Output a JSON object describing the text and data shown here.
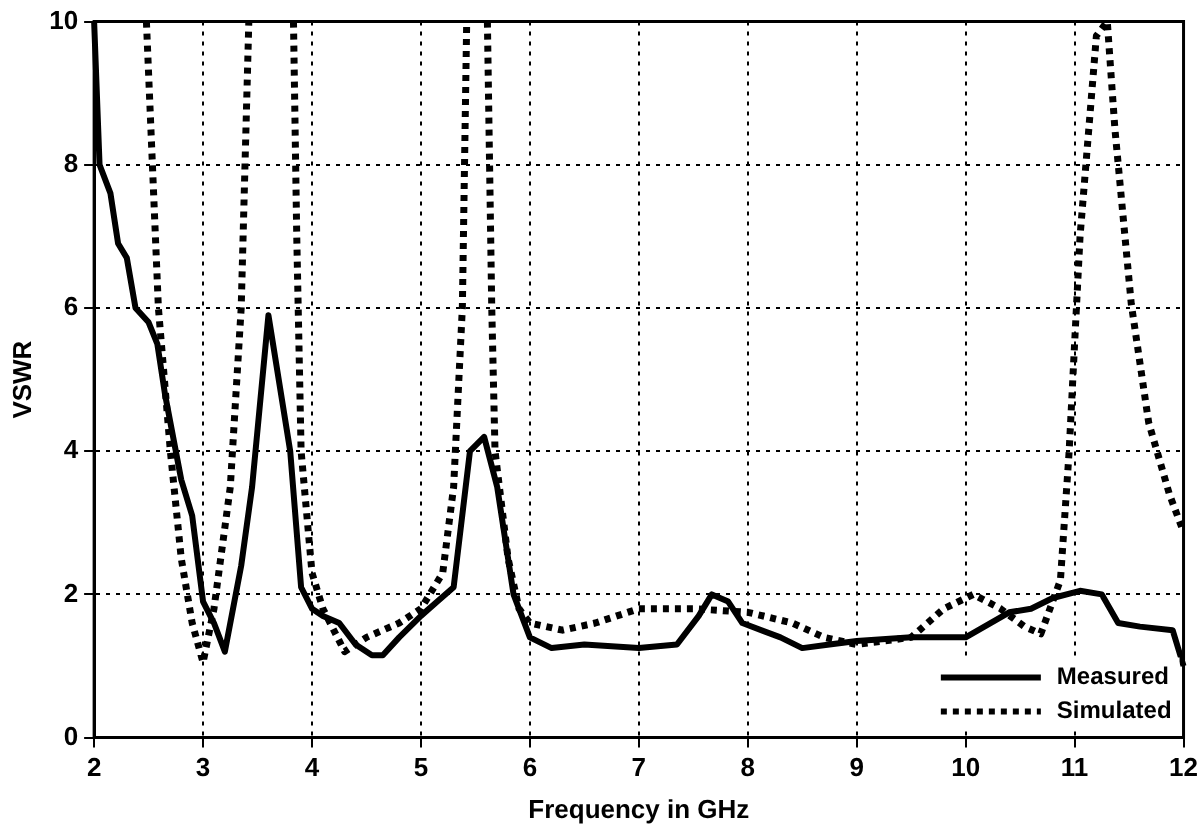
{
  "chart_data": {
    "type": "line",
    "xlabel": "Frequency in GHz",
    "ylabel": "VSWR",
    "xlim": [
      2,
      12
    ],
    "xticks": [
      2,
      3,
      4,
      5,
      6,
      7,
      8,
      9,
      10,
      11,
      12
    ],
    "ylim": [
      0,
      10
    ],
    "yticks": [
      0,
      2,
      4,
      6,
      8,
      10
    ],
    "grid": true,
    "legend": "bottom right",
    "marker": "none",
    "series": [
      {
        "name": "Measured",
        "color": "#000000",
        "line_style": "solid",
        "x": [
          2.0,
          2.05,
          2.15,
          2.22,
          2.3,
          2.38,
          2.5,
          2.58,
          2.65,
          2.8,
          2.9,
          3.0,
          3.1,
          3.2,
          3.35,
          3.45,
          3.6,
          3.8,
          3.9,
          4.0,
          4.1,
          4.25,
          4.4,
          4.55,
          4.65,
          4.8,
          5.0,
          5.15,
          5.3,
          5.45,
          5.58,
          5.7,
          5.85,
          6.0,
          6.2,
          6.5,
          7.0,
          7.35,
          7.55,
          7.67,
          7.82,
          7.95,
          8.3,
          8.5,
          8.75,
          9.0,
          9.5,
          10.0,
          10.4,
          10.6,
          10.8,
          11.05,
          11.25,
          11.4,
          11.6,
          11.9,
          12.0
        ],
        "values": [
          10,
          8.0,
          7.6,
          6.9,
          6.7,
          6.0,
          5.8,
          5.5,
          4.8,
          3.6,
          3.1,
          1.9,
          1.6,
          1.2,
          2.4,
          3.5,
          5.9,
          4.0,
          2.1,
          1.8,
          1.7,
          1.6,
          1.3,
          1.15,
          1.15,
          1.4,
          1.7,
          1.9,
          2.1,
          4.0,
          4.2,
          3.5,
          2.0,
          1.4,
          1.25,
          1.3,
          1.25,
          1.3,
          1.7,
          2.0,
          1.9,
          1.6,
          1.4,
          1.25,
          1.3,
          1.35,
          1.4,
          1.4,
          1.75,
          1.8,
          1.95,
          2.05,
          2.0,
          1.6,
          1.55,
          1.5,
          1.0
        ]
      },
      {
        "name": "Simulated",
        "color": "#000000",
        "line_style": "dotted",
        "x": [
          2.48,
          2.59,
          2.7,
          2.8,
          2.9,
          3.0,
          3.1,
          3.25,
          3.35,
          3.42,
          3.6,
          3.83,
          3.86,
          3.9,
          4.0,
          4.1,
          4.3,
          4.5,
          4.8,
          5.0,
          5.2,
          5.3,
          5.38,
          5.42,
          5.5,
          5.61,
          5.65,
          5.68,
          5.8,
          5.9,
          6.0,
          6.3,
          6.6,
          7.0,
          7.5,
          8.0,
          8.41,
          8.7,
          9.0,
          9.5,
          9.8,
          10.07,
          10.32,
          10.54,
          10.69,
          10.87,
          10.95,
          11.05,
          11.2,
          11.3,
          11.37,
          11.52,
          11.68,
          11.87,
          12.0
        ],
        "values": [
          10,
          6.0,
          4.0,
          2.5,
          1.6,
          1.05,
          1.8,
          3.5,
          6.0,
          10,
          null,
          10,
          7.0,
          4.0,
          2.3,
          1.8,
          1.2,
          1.4,
          1.6,
          1.8,
          2.3,
          3.5,
          6.0,
          10,
          null,
          10,
          6.0,
          4.0,
          2.5,
          1.8,
          1.6,
          1.5,
          1.6,
          1.8,
          1.8,
          1.75,
          1.6,
          1.4,
          1.3,
          1.4,
          1.8,
          2.0,
          1.8,
          1.55,
          1.45,
          2.2,
          4.0,
          7.0,
          9.8,
          10,
          8.5,
          6.06,
          4.4,
          3.4,
          2.87
        ]
      }
    ]
  }
}
